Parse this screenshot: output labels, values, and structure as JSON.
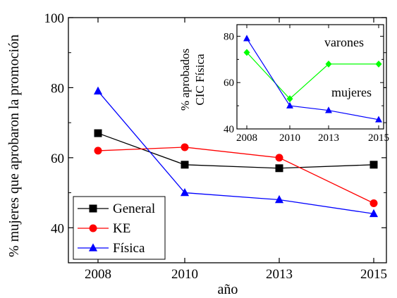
{
  "chart_data": [
    {
      "type": "line",
      "categories": [
        "2008",
        "2010",
        "2013",
        "2015"
      ],
      "xlabel": "año",
      "ylabel": "% mujeres que aprobaron la promoción",
      "ylim": [
        30,
        100
      ],
      "yticks": [
        "40",
        "60",
        "80",
        "100"
      ],
      "grid": false,
      "legend": "bottom-left",
      "series": [
        {
          "name": "General",
          "values": [
            67,
            58,
            57,
            58
          ],
          "color": "#000000",
          "marker": "square"
        },
        {
          "name": "KE",
          "values": [
            62,
            63,
            60,
            47
          ],
          "color": "#ff0000",
          "marker": "circle"
        },
        {
          "name": "Física",
          "values": [
            79,
            50,
            48,
            44
          ],
          "color": "#0000ff",
          "marker": "triangle"
        }
      ]
    },
    {
      "type": "line",
      "categories": [
        "2008",
        "2010",
        "2013",
        "2015"
      ],
      "ylabel_lines": [
        "% aprobados",
        "CIC Física"
      ],
      "ylim": [
        40,
        85
      ],
      "yticks": [
        "40",
        "60",
        "80"
      ],
      "grid": false,
      "series": [
        {
          "values": [
            73,
            53,
            68,
            68
          ],
          "color": "#00ff00",
          "marker": "diamond"
        },
        {
          "values": [
            79,
            50,
            48,
            44
          ],
          "color": "#0000ff",
          "marker": "triangle"
        }
      ],
      "annotations": [
        "varones",
        "mujeres"
      ]
    }
  ]
}
